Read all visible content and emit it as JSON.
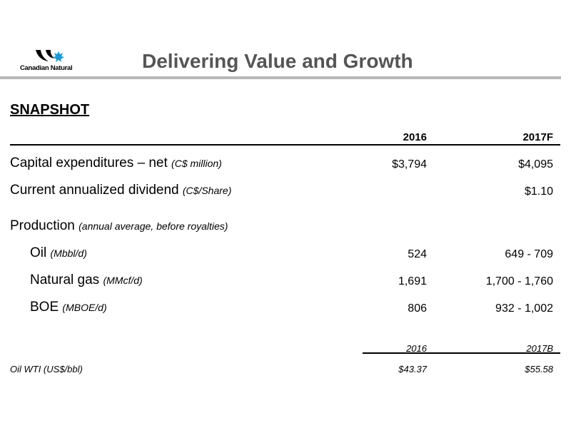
{
  "header": {
    "logo_text": "Canadian Natural",
    "title": "Delivering Value and Growth"
  },
  "section_title": "SNAPSHOT",
  "columns": [
    "2016",
    "2017F"
  ],
  "rows": [
    {
      "label": "Capital expenditures – net",
      "unit": "(C$ million)",
      "v2016": "$3,794",
      "v2017": "$4,095"
    },
    {
      "label": "Current annualized dividend",
      "unit": "(C$/Share)",
      "v2016": "",
      "v2017": "$1.10"
    },
    {
      "label": "Production",
      "unit": "(annual average, before royalties)",
      "v2016": "",
      "v2017": ""
    },
    {
      "label": "Oil",
      "unit": "(Mbbl/d)",
      "v2016": "524",
      "v2017": "649 - 709"
    },
    {
      "label": "Natural gas",
      "unit": "(MMcf/d)",
      "v2016": "1,691",
      "v2017": "1,700 - 1,760"
    },
    {
      "label": "BOE",
      "unit": "(MBOE/d)",
      "v2016": "806",
      "v2017": "932 - 1,002"
    }
  ],
  "wti": {
    "columns": [
      "2016",
      "2017B"
    ],
    "label": "Oil WTI (US$/bbl)",
    "v2016": "$43.37",
    "v2017": "$55.58"
  },
  "colors": {
    "title": "#555555",
    "rule": "#b8b8b8",
    "logo_blue": "#1a9ad6",
    "logo_black": "#000000"
  }
}
